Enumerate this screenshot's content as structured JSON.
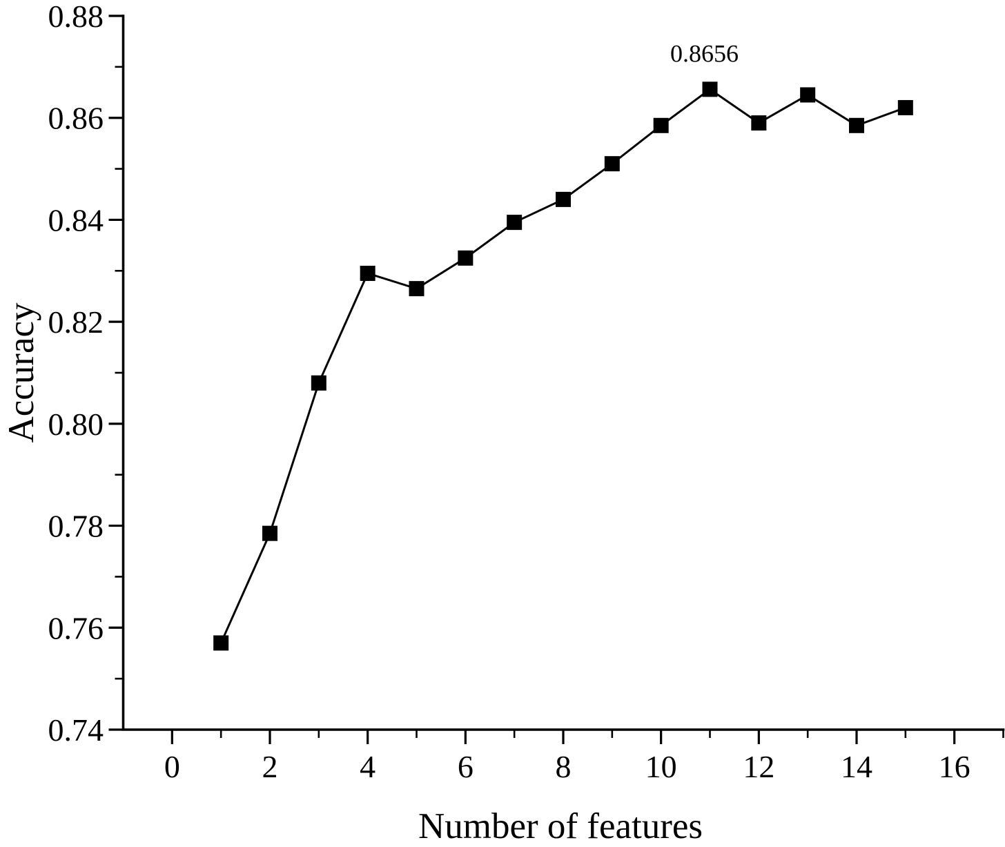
{
  "chart_data": {
    "type": "line",
    "title": "",
    "xlabel": "Number of features",
    "ylabel": "Accuracy",
    "x": [
      1,
      2,
      3,
      4,
      5,
      6,
      7,
      8,
      9,
      10,
      11,
      12,
      13,
      14,
      15
    ],
    "y": [
      0.757,
      0.7785,
      0.808,
      0.8295,
      0.8265,
      0.8325,
      0.8395,
      0.844,
      0.851,
      0.8585,
      0.8656,
      0.859,
      0.8645,
      0.8585,
      0.862
    ],
    "xlim": [
      -1,
      17
    ],
    "ylim": [
      0.74,
      0.88
    ],
    "x_major_ticks": [
      0,
      2,
      4,
      6,
      8,
      10,
      12,
      14,
      16
    ],
    "x_minor_ticks": [
      1,
      3,
      5,
      7,
      9,
      11,
      13,
      15,
      17
    ],
    "y_major_ticks": [
      0.74,
      0.76,
      0.78,
      0.8,
      0.82,
      0.84,
      0.86,
      0.88
    ],
    "y_minor_ticks": [
      0.75,
      0.77,
      0.79,
      0.81,
      0.83,
      0.85,
      0.87
    ],
    "annotation": {
      "text": "0.8656",
      "x": 11,
      "y": 0.8656
    },
    "marker": "filled-square",
    "line_color": "#000000",
    "marker_color": "#000000",
    "background_color": "#ffffff",
    "grid": false,
    "legend": null
  }
}
